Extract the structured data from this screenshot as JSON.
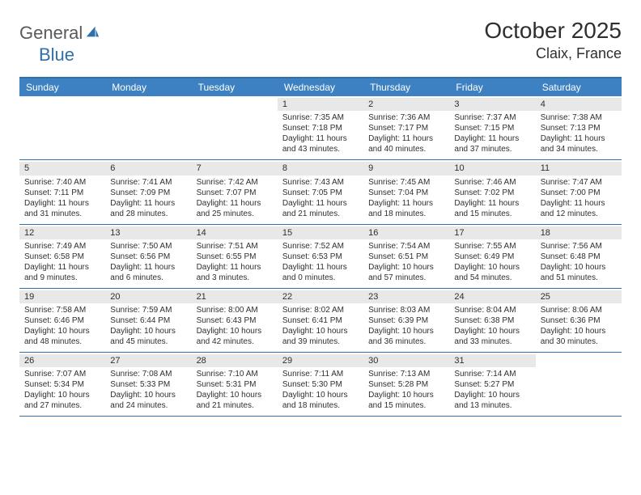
{
  "logo": {
    "word1": "General",
    "word2": "Blue"
  },
  "title": "October 2025",
  "location": "Claix, France",
  "colors": {
    "header_bg": "#3d81c2",
    "rule": "#2f6faa",
    "daynum_bg": "#e8e8e8",
    "text": "#2f2f2f",
    "logo_gray": "#5a5a5a",
    "logo_blue": "#2f6faa",
    "white": "#ffffff"
  },
  "fonts": {
    "title_size": 28,
    "location_size": 18,
    "dayhead_size": 12,
    "body_size": 10
  },
  "day_headers": [
    "Sunday",
    "Monday",
    "Tuesday",
    "Wednesday",
    "Thursday",
    "Friday",
    "Saturday"
  ],
  "weeks": [
    [
      {
        "n": "",
        "empty": true
      },
      {
        "n": "",
        "empty": true
      },
      {
        "n": "",
        "empty": true
      },
      {
        "n": "1",
        "sr": "Sunrise: 7:35 AM",
        "ss": "Sunset: 7:18 PM",
        "dl": "Daylight: 11 hours and 43 minutes."
      },
      {
        "n": "2",
        "sr": "Sunrise: 7:36 AM",
        "ss": "Sunset: 7:17 PM",
        "dl": "Daylight: 11 hours and 40 minutes."
      },
      {
        "n": "3",
        "sr": "Sunrise: 7:37 AM",
        "ss": "Sunset: 7:15 PM",
        "dl": "Daylight: 11 hours and 37 minutes."
      },
      {
        "n": "4",
        "sr": "Sunrise: 7:38 AM",
        "ss": "Sunset: 7:13 PM",
        "dl": "Daylight: 11 hours and 34 minutes."
      }
    ],
    [
      {
        "n": "5",
        "sr": "Sunrise: 7:40 AM",
        "ss": "Sunset: 7:11 PM",
        "dl": "Daylight: 11 hours and 31 minutes."
      },
      {
        "n": "6",
        "sr": "Sunrise: 7:41 AM",
        "ss": "Sunset: 7:09 PM",
        "dl": "Daylight: 11 hours and 28 minutes."
      },
      {
        "n": "7",
        "sr": "Sunrise: 7:42 AM",
        "ss": "Sunset: 7:07 PM",
        "dl": "Daylight: 11 hours and 25 minutes."
      },
      {
        "n": "8",
        "sr": "Sunrise: 7:43 AM",
        "ss": "Sunset: 7:05 PM",
        "dl": "Daylight: 11 hours and 21 minutes."
      },
      {
        "n": "9",
        "sr": "Sunrise: 7:45 AM",
        "ss": "Sunset: 7:04 PM",
        "dl": "Daylight: 11 hours and 18 minutes."
      },
      {
        "n": "10",
        "sr": "Sunrise: 7:46 AM",
        "ss": "Sunset: 7:02 PM",
        "dl": "Daylight: 11 hours and 15 minutes."
      },
      {
        "n": "11",
        "sr": "Sunrise: 7:47 AM",
        "ss": "Sunset: 7:00 PM",
        "dl": "Daylight: 11 hours and 12 minutes."
      }
    ],
    [
      {
        "n": "12",
        "sr": "Sunrise: 7:49 AM",
        "ss": "Sunset: 6:58 PM",
        "dl": "Daylight: 11 hours and 9 minutes."
      },
      {
        "n": "13",
        "sr": "Sunrise: 7:50 AM",
        "ss": "Sunset: 6:56 PM",
        "dl": "Daylight: 11 hours and 6 minutes."
      },
      {
        "n": "14",
        "sr": "Sunrise: 7:51 AM",
        "ss": "Sunset: 6:55 PM",
        "dl": "Daylight: 11 hours and 3 minutes."
      },
      {
        "n": "15",
        "sr": "Sunrise: 7:52 AM",
        "ss": "Sunset: 6:53 PM",
        "dl": "Daylight: 11 hours and 0 minutes."
      },
      {
        "n": "16",
        "sr": "Sunrise: 7:54 AM",
        "ss": "Sunset: 6:51 PM",
        "dl": "Daylight: 10 hours and 57 minutes."
      },
      {
        "n": "17",
        "sr": "Sunrise: 7:55 AM",
        "ss": "Sunset: 6:49 PM",
        "dl": "Daylight: 10 hours and 54 minutes."
      },
      {
        "n": "18",
        "sr": "Sunrise: 7:56 AM",
        "ss": "Sunset: 6:48 PM",
        "dl": "Daylight: 10 hours and 51 minutes."
      }
    ],
    [
      {
        "n": "19",
        "sr": "Sunrise: 7:58 AM",
        "ss": "Sunset: 6:46 PM",
        "dl": "Daylight: 10 hours and 48 minutes."
      },
      {
        "n": "20",
        "sr": "Sunrise: 7:59 AM",
        "ss": "Sunset: 6:44 PM",
        "dl": "Daylight: 10 hours and 45 minutes."
      },
      {
        "n": "21",
        "sr": "Sunrise: 8:00 AM",
        "ss": "Sunset: 6:43 PM",
        "dl": "Daylight: 10 hours and 42 minutes."
      },
      {
        "n": "22",
        "sr": "Sunrise: 8:02 AM",
        "ss": "Sunset: 6:41 PM",
        "dl": "Daylight: 10 hours and 39 minutes."
      },
      {
        "n": "23",
        "sr": "Sunrise: 8:03 AM",
        "ss": "Sunset: 6:39 PM",
        "dl": "Daylight: 10 hours and 36 minutes."
      },
      {
        "n": "24",
        "sr": "Sunrise: 8:04 AM",
        "ss": "Sunset: 6:38 PM",
        "dl": "Daylight: 10 hours and 33 minutes."
      },
      {
        "n": "25",
        "sr": "Sunrise: 8:06 AM",
        "ss": "Sunset: 6:36 PM",
        "dl": "Daylight: 10 hours and 30 minutes."
      }
    ],
    [
      {
        "n": "26",
        "sr": "Sunrise: 7:07 AM",
        "ss": "Sunset: 5:34 PM",
        "dl": "Daylight: 10 hours and 27 minutes."
      },
      {
        "n": "27",
        "sr": "Sunrise: 7:08 AM",
        "ss": "Sunset: 5:33 PM",
        "dl": "Daylight: 10 hours and 24 minutes."
      },
      {
        "n": "28",
        "sr": "Sunrise: 7:10 AM",
        "ss": "Sunset: 5:31 PM",
        "dl": "Daylight: 10 hours and 21 minutes."
      },
      {
        "n": "29",
        "sr": "Sunrise: 7:11 AM",
        "ss": "Sunset: 5:30 PM",
        "dl": "Daylight: 10 hours and 18 minutes."
      },
      {
        "n": "30",
        "sr": "Sunrise: 7:13 AM",
        "ss": "Sunset: 5:28 PM",
        "dl": "Daylight: 10 hours and 15 minutes."
      },
      {
        "n": "31",
        "sr": "Sunrise: 7:14 AM",
        "ss": "Sunset: 5:27 PM",
        "dl": "Daylight: 10 hours and 13 minutes."
      },
      {
        "n": "",
        "empty": true
      }
    ]
  ]
}
